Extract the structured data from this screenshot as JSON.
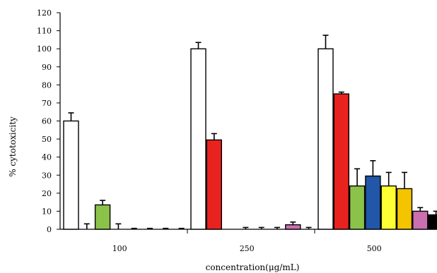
{
  "chart_data": {
    "type": "bar",
    "title": "",
    "xlabel": "concentration(μg/mL)",
    "ylabel": "% cytotoxicity",
    "ylim": [
      0,
      120
    ],
    "yticks": [
      0,
      10,
      20,
      30,
      40,
      50,
      60,
      70,
      80,
      90,
      100,
      110,
      120
    ],
    "grid": false,
    "legend": "none",
    "categories": [
      "100",
      "250",
      "500"
    ],
    "series": [
      {
        "color": "#ffffff",
        "values": [
          60,
          100,
          100
        ],
        "errors": [
          4.5,
          3.5,
          7.5
        ]
      },
      {
        "color": "#e8231f",
        "values": [
          0,
          49.5,
          75
        ],
        "errors": [
          3,
          3.5,
          1
        ]
      },
      {
        "color": "#8bc34a",
        "values": [
          13.5,
          0,
          24
        ],
        "errors": [
          2.5,
          0,
          9.5
        ]
      },
      {
        "color": "#2256a8",
        "values": [
          0,
          0,
          29.5
        ],
        "errors": [
          3,
          1,
          8.5
        ]
      },
      {
        "color": "#ffff33",
        "values": [
          0,
          0,
          24
        ],
        "errors": [
          0.5,
          1,
          7.5
        ]
      },
      {
        "color": "#f5c400",
        "values": [
          0,
          0,
          22.5
        ],
        "errors": [
          0.5,
          1,
          9
        ]
      },
      {
        "color": "#cc6fb0",
        "values": [
          0,
          2.5,
          10
        ],
        "errors": [
          0.5,
          1.5,
          2
        ]
      },
      {
        "color": "#000000",
        "values": [
          0,
          0,
          8
        ],
        "errors": [
          0.5,
          1,
          2
        ]
      }
    ]
  }
}
